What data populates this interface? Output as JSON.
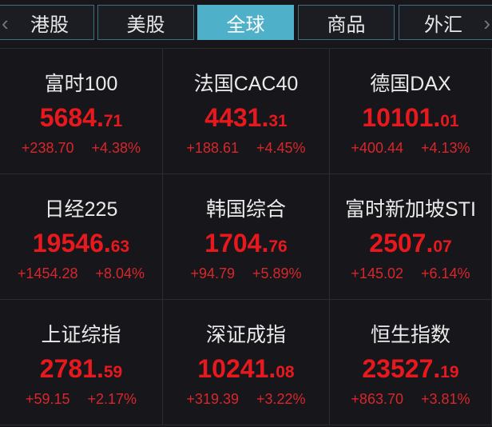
{
  "tabs": [
    {
      "label": "港股"
    },
    {
      "label": "美股"
    },
    {
      "label": "全球",
      "active": true
    },
    {
      "label": "商品"
    },
    {
      "label": "外汇"
    }
  ],
  "nav": {
    "prev": "‹",
    "next": "›"
  },
  "colors": {
    "up": "#e8191e",
    "active_tab": "#4fb0c9",
    "background": "#17171b"
  },
  "indices": [
    {
      "name": "富时100",
      "int": "5684.",
      "dec": "71",
      "change": "+238.70",
      "pct": "+4.38%"
    },
    {
      "name": "法国CAC40",
      "int": "4431.",
      "dec": "31",
      "change": "+188.61",
      "pct": "+4.45%"
    },
    {
      "name": "德国DAX",
      "int": "10101.",
      "dec": "01",
      "change": "+400.44",
      "pct": "+4.13%"
    },
    {
      "name": "日经225",
      "int": "19546.",
      "dec": "63",
      "change": "+1454.28",
      "pct": "+8.04%"
    },
    {
      "name": "韩国综合",
      "int": "1704.",
      "dec": "76",
      "change": "+94.79",
      "pct": "+5.89%"
    },
    {
      "name": "富时新加坡STI",
      "int": "2507.",
      "dec": "07",
      "change": "+145.02",
      "pct": "+6.14%"
    },
    {
      "name": "上证综指",
      "int": "2781.",
      "dec": "59",
      "change": "+59.15",
      "pct": "+2.17%"
    },
    {
      "name": "深证成指",
      "int": "10241.",
      "dec": "08",
      "change": "+319.39",
      "pct": "+3.22%"
    },
    {
      "name": "恒生指数",
      "int": "23527.",
      "dec": "19",
      "change": "+863.70",
      "pct": "+3.81%"
    }
  ]
}
